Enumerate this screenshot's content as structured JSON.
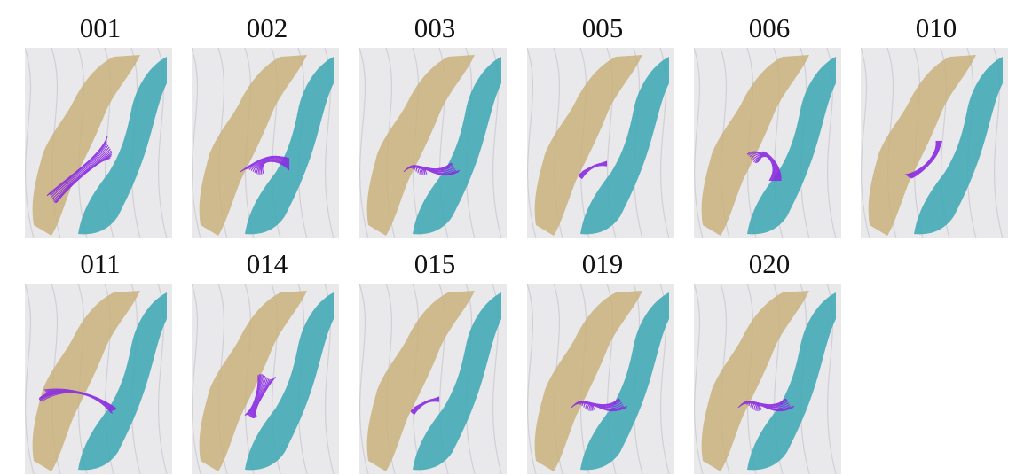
{
  "figure": {
    "colors": {
      "background": "#ffffff",
      "surface": "#e9e9ec",
      "gyrus_tan": "#c9b27c",
      "gyrus_teal": "#3aa7b4",
      "fibers": "#8a2be2"
    },
    "panels": [
      {
        "label": "001",
        "fiber_style": "fan-left"
      },
      {
        "label": "002",
        "fiber_style": "fan-center"
      },
      {
        "label": "003",
        "fiber_style": "bundle-low"
      },
      {
        "label": "005",
        "fiber_style": "short"
      },
      {
        "label": "006",
        "fiber_style": "knot"
      },
      {
        "label": "010",
        "fiber_style": "hook"
      },
      {
        "label": "011",
        "fiber_style": "wide-left"
      },
      {
        "label": "014",
        "fiber_style": "vertical"
      },
      {
        "label": "015",
        "fiber_style": "short"
      },
      {
        "label": "019",
        "fiber_style": "bundle-low"
      },
      {
        "label": "020",
        "fiber_style": "bundle-low"
      }
    ]
  }
}
